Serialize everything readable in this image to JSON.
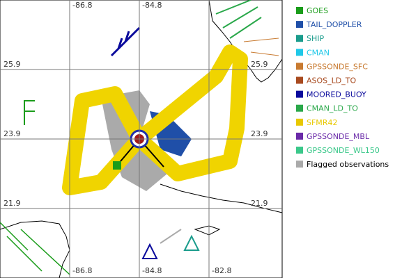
{
  "map": {
    "lon_labels": [
      "-86.8",
      "-84.8",
      "-82.8"
    ],
    "lat_labels": [
      "25.9",
      "23.9",
      "21.9"
    ]
  },
  "legend": [
    {
      "name": "GOES",
      "color": "#1a9c1a"
    },
    {
      "name": "TAIL_DOPPLER",
      "color": "#1f4fa8"
    },
    {
      "name": "SHIP",
      "color": "#1a9c8c"
    },
    {
      "name": "CMAN",
      "color": "#1fc8e8"
    },
    {
      "name": "GPSSONDE_SFC",
      "color": "#c87a30"
    },
    {
      "name": "ASOS_LD_TO",
      "color": "#a84a1f"
    },
    {
      "name": "MOORED_BUOY",
      "color": "#0a0a9c"
    },
    {
      "name": "CMAN_LD_TO",
      "color": "#2aa84a"
    },
    {
      "name": "SFMR42",
      "color": "#e8c800"
    },
    {
      "name": "GPSSONDE_MBL",
      "color": "#6a2aa8"
    },
    {
      "name": "GPSSONDE_WL150",
      "color": "#3ac88a"
    },
    {
      "name": "Flagged observations",
      "color": "#aaaaaa"
    }
  ]
}
